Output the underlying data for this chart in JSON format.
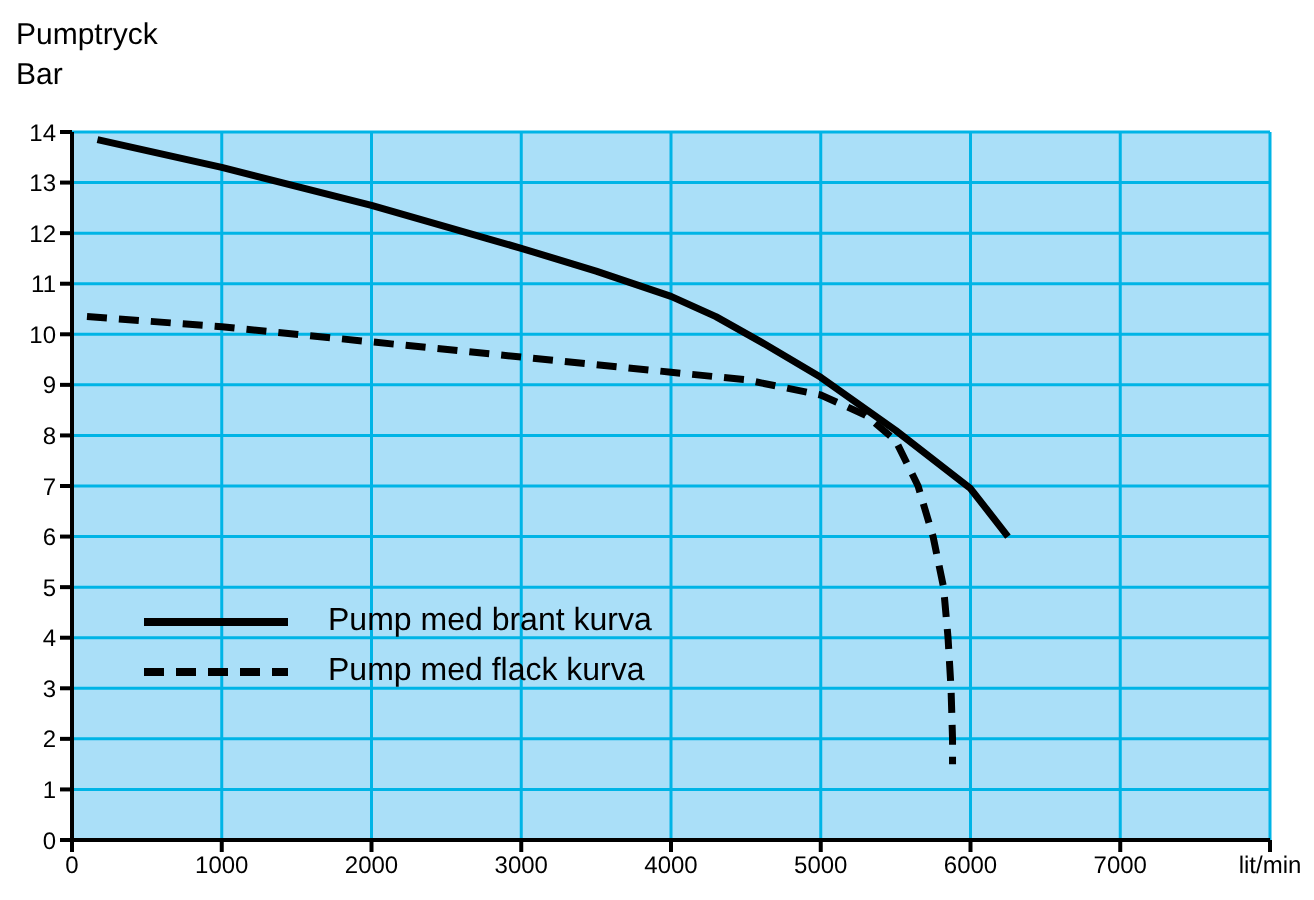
{
  "chart_data": {
    "type": "line",
    "ylabel": "Pumptryck\nBar",
    "xlim": [
      0,
      8000
    ],
    "xticks": [
      0,
      1000,
      2000,
      3000,
      4000,
      5000,
      6000,
      7000,
      {
        "value": 8000,
        "label": "lit/min"
      }
    ],
    "ylim": [
      0,
      14
    ],
    "yticks": [
      0,
      1,
      2,
      3,
      4,
      5,
      6,
      7,
      8,
      9,
      10,
      11,
      12,
      13,
      14
    ],
    "grid": true,
    "legend": "bottom left",
    "marker": "none",
    "series": [
      {
        "name": "Pump med brant kurva",
        "color": "#000000",
        "line_style": "solid",
        "x": [
          170,
          1000,
          2000,
          3000,
          3500,
          4000,
          4300,
          4600,
          5000,
          5500,
          6000,
          6250
        ],
        "values": [
          13.85,
          13.3,
          12.55,
          11.7,
          11.25,
          10.75,
          10.35,
          9.85,
          9.15,
          8.1,
          6.95,
          6.0
        ]
      },
      {
        "name": "Pump med flack kurva",
        "color": "#000000",
        "line_style": "dashed",
        "x": [
          100,
          1000,
          2000,
          3000,
          4000,
          4500,
          5000,
          5300,
          5500,
          5650,
          5750,
          5820,
          5850,
          5870,
          5880,
          5880
        ],
        "values": [
          10.35,
          10.15,
          9.85,
          9.55,
          9.25,
          9.1,
          8.8,
          8.4,
          7.9,
          7.0,
          6.0,
          5.0,
          4.0,
          3.0,
          2.0,
          1.5
        ]
      }
    ]
  }
}
